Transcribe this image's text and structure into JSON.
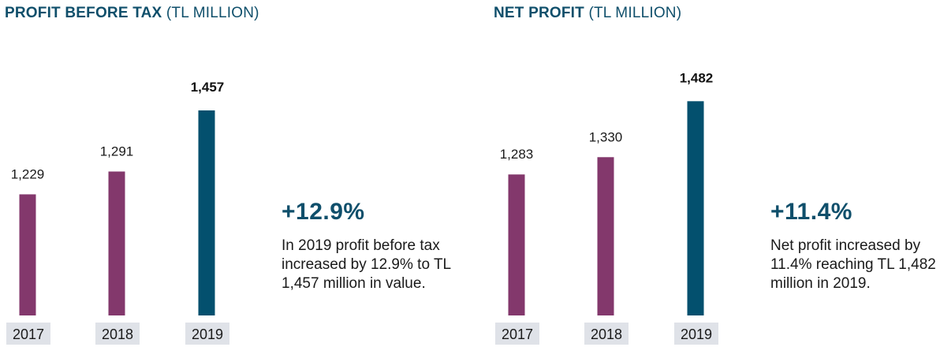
{
  "colors": {
    "title": "#0f4f6b",
    "bar_prior": "#83386c",
    "bar_current": "#03506e",
    "year_box": "#dfe2e8",
    "text": "#1a1a1a"
  },
  "chart_data": [
    {
      "type": "bar",
      "title": "PROFIT BEFORE TAX",
      "title_unit": "(TL MILLION)",
      "categories": [
        "2017",
        "2018",
        "2019"
      ],
      "values": [
        1229,
        1291,
        1457
      ],
      "value_labels": [
        "1,229",
        "1,291",
        "1,457"
      ],
      "highlight_index": 2,
      "ylim": [
        0,
        1500
      ],
      "xlabel": "",
      "ylabel": "",
      "grid": false,
      "annotation": {
        "growth": "+12.9%",
        "text": "In 2019 profit before tax increased by 12.9% to TL 1,457 million in value."
      }
    },
    {
      "type": "bar",
      "title": "NET PROFIT",
      "title_unit": "(TL MILLION)",
      "categories": [
        "2017",
        "2018",
        "2019"
      ],
      "values": [
        1283,
        1330,
        1482
      ],
      "value_labels": [
        "1,283",
        "1,330",
        "1,482"
      ],
      "highlight_index": 2,
      "ylim": [
        0,
        1500
      ],
      "xlabel": "",
      "ylabel": "",
      "grid": false,
      "annotation": {
        "growth": "+11.4%",
        "text": "Net profit increased by 11.4% reaching TL 1,482 million in 2019."
      }
    }
  ]
}
